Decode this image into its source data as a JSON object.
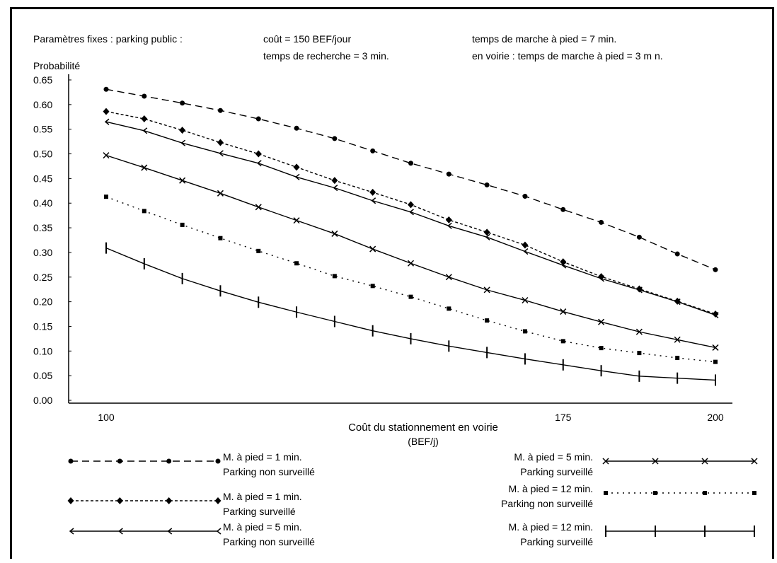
{
  "header": {
    "line1_left": "Paramètres fixes : parking public :",
    "line1_mid": "coût = 150 BEF/jour",
    "line1_right": "temps de marche à pied = 7 min.",
    "line2_mid": "temps de recherche = 3 min.",
    "line2_right": "en voirie : temps de marche à pied = 3 m n."
  },
  "chart_data": {
    "type": "line",
    "title": "",
    "ylabel": "Probabilité",
    "xlabel": "Coût du stationnement en voirie",
    "xlabel_unit": "(BEF/j)",
    "xlim": [
      100,
      200
    ],
    "ylim": [
      0,
      0.65
    ],
    "xtick_labels": [
      {
        "value": 100,
        "label": "100"
      },
      {
        "value": 175,
        "label": "175"
      },
      {
        "value": 200,
        "label": "200"
      }
    ],
    "ytick_labels": [
      "0.00",
      "0.05",
      "0.10",
      "0.15",
      "0.20",
      "0.25",
      "0.30",
      "0.35",
      "0.40",
      "0.45",
      "0.50",
      "0.55",
      "0.60",
      "0.65"
    ],
    "grid": false,
    "x": [
      100,
      106.25,
      112.5,
      118.75,
      125,
      131.25,
      137.5,
      143.75,
      150,
      156.25,
      162.5,
      168.75,
      175,
      181.25,
      187.5,
      193.75,
      200
    ],
    "series": [
      {
        "name": "M. à pied = 1 min. Parking non surveillé",
        "values": [
          0.631,
          0.617,
          0.603,
          0.588,
          0.571,
          0.552,
          0.531,
          0.506,
          0.481,
          0.459,
          0.437,
          0.414,
          0.387,
          0.361,
          0.331,
          0.297,
          0.265
        ]
      },
      {
        "name": "M. à pied = 1 min. Parking surveillé",
        "values": [
          0.586,
          0.571,
          0.548,
          0.523,
          0.5,
          0.473,
          0.446,
          0.422,
          0.397,
          0.366,
          0.341,
          0.315,
          0.281,
          0.251,
          0.226,
          0.201,
          0.175
        ]
      },
      {
        "name": "M. à pied = 5 min. Parking non surveillé",
        "values": [
          0.565,
          0.547,
          0.522,
          0.501,
          0.481,
          0.453,
          0.431,
          0.405,
          0.382,
          0.354,
          0.331,
          0.302,
          0.274,
          0.247,
          0.224,
          0.2,
          0.173
        ]
      },
      {
        "name": "M. à pied = 5 min. Parking surveillé",
        "values": [
          0.497,
          0.472,
          0.446,
          0.42,
          0.392,
          0.365,
          0.338,
          0.307,
          0.278,
          0.25,
          0.224,
          0.203,
          0.18,
          0.159,
          0.139,
          0.123,
          0.107
        ]
      },
      {
        "name": "M. à pied = 12 min. Parking non surveillé",
        "values": [
          0.413,
          0.384,
          0.356,
          0.329,
          0.303,
          0.278,
          0.252,
          0.232,
          0.21,
          0.186,
          0.162,
          0.14,
          0.12,
          0.106,
          0.096,
          0.086,
          0.078
        ]
      },
      {
        "name": "M. à pied = 12 min. Parking surveillé",
        "values": [
          0.309,
          0.277,
          0.247,
          0.222,
          0.199,
          0.179,
          0.16,
          0.141,
          0.125,
          0.11,
          0.097,
          0.084,
          0.072,
          0.06,
          0.049,
          0.045,
          0.041
        ]
      }
    ],
    "legend": [
      {
        "line1": "M. à pied = 1 min.",
        "line2": "Parking non surveillé"
      },
      {
        "line1": "M. à pied = 1 min.",
        "line2": "Parking surveillé"
      },
      {
        "line1": "M. à pied = 5 min.",
        "line2": "Parking non surveillé"
      },
      {
        "line1": "M. à pied = 5 min.",
        "line2": "Parking surveillé"
      },
      {
        "line1": "M. à pied = 12 min.",
        "line2": "Parking non surveillé"
      },
      {
        "line1": "M. à pied = 12 min.",
        "line2": "Parking surveillé"
      }
    ]
  }
}
